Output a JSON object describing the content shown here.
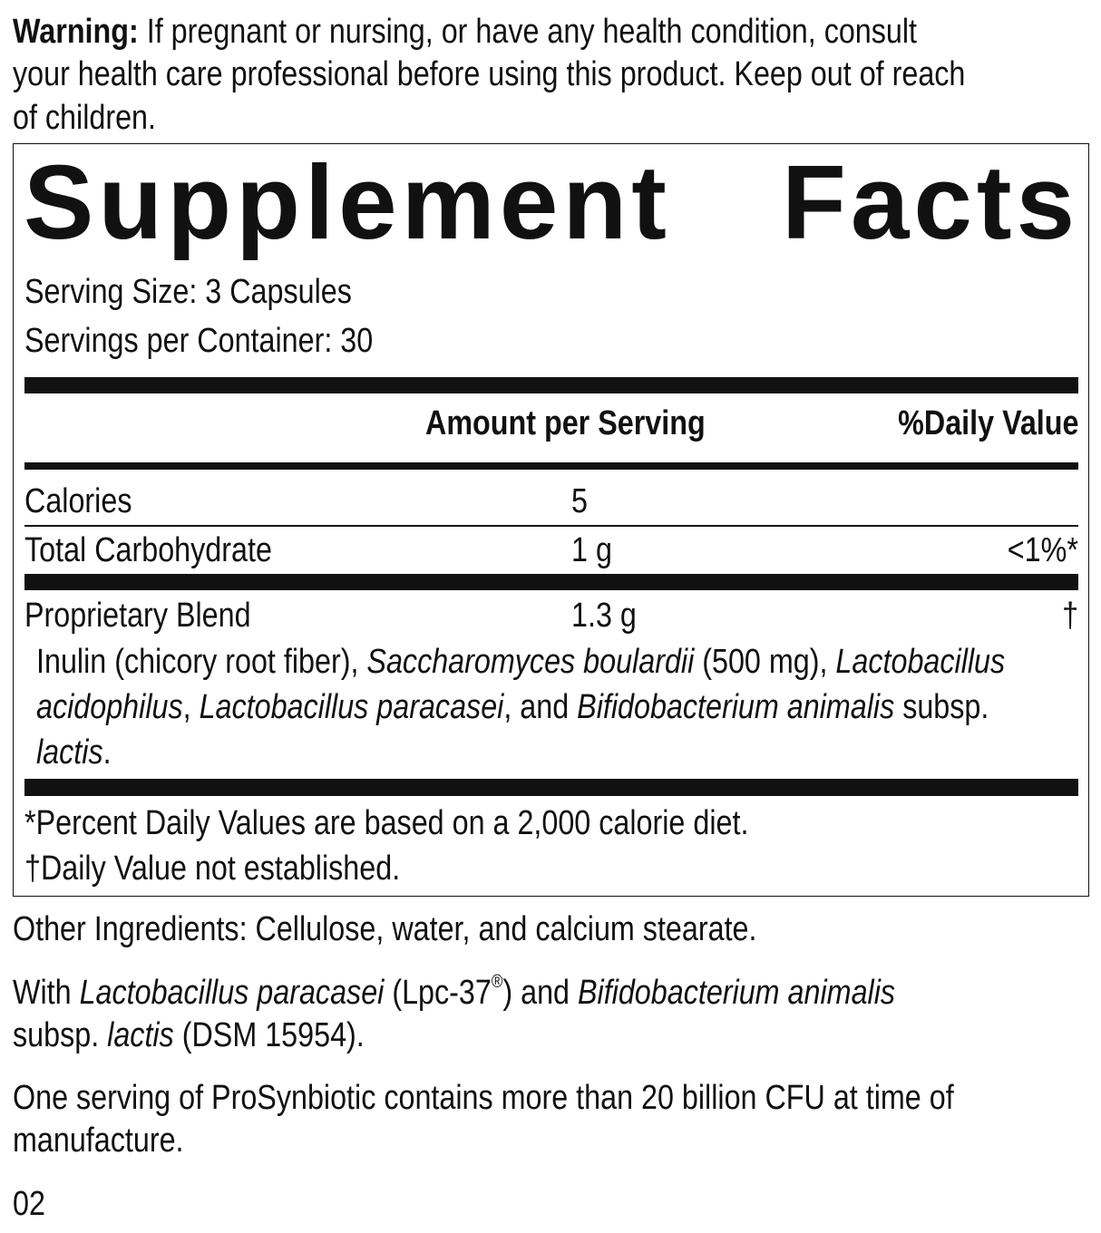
{
  "warning": {
    "label": "Warning:",
    "lines": [
      " If pregnant or nursing, or have any health condition, consult",
      "your health care professional before using this product. Keep out of reach",
      "of children."
    ]
  },
  "facts": {
    "title_word1": "Supplement",
    "title_word2": "Facts",
    "serving_size": "Serving Size: 3 Capsules",
    "servings_per_container": "Servings per Container: 30",
    "header_amount": "Amount per Serving",
    "header_dv": "%Daily Value",
    "rows": [
      {
        "name": "Calories",
        "amount": "5",
        "dv": ""
      },
      {
        "name": "Total Carbohydrate",
        "amount": "1 g",
        "dv": "<1%*"
      },
      {
        "name": "Proprietary Blend",
        "amount": "1.3 g",
        "dv": "†"
      }
    ],
    "blend_lines": [
      [
        {
          "t": "Inulin (chicory root fiber), "
        },
        {
          "t": "Saccharomyces boulardii",
          "i": true
        },
        {
          "t": " (500 mg), "
        },
        {
          "t": "Lactobacillus",
          "i": true
        }
      ],
      [
        {
          "t": "acidophilus",
          "i": true
        },
        {
          "t": ", "
        },
        {
          "t": "Lactobacillus paracasei",
          "i": true
        },
        {
          "t": ", and "
        },
        {
          "t": "Bifidobacterium animalis",
          "i": true
        },
        {
          "t": " subsp."
        }
      ],
      [
        {
          "t": "lactis",
          "i": true
        },
        {
          "t": "."
        }
      ]
    ],
    "footnote_1": "*Percent Daily Values are based on a 2,000 calorie diet.",
    "footnote_2": "†Daily Value not established."
  },
  "other_ingredients": "Other Ingredients: Cellulose, water, and calcium stearate.",
  "with_lines": [
    [
      {
        "t": "With "
      },
      {
        "t": "Lactobacillus paracasei",
        "i": true
      },
      {
        "t": " (Lpc-37"
      },
      {
        "t": "®",
        "sup": true
      },
      {
        "t": ") and "
      },
      {
        "t": "Bifidobacterium animalis",
        "i": true
      }
    ],
    [
      {
        "t": "subsp. "
      },
      {
        "t": "lactis",
        "i": true
      },
      {
        "t": " (DSM 15954)."
      }
    ]
  ],
  "cfu_lines": [
    "One serving of ProSynbiotic contains more than 20 billion CFU at time of",
    "manufacture."
  ],
  "page_code": "02"
}
